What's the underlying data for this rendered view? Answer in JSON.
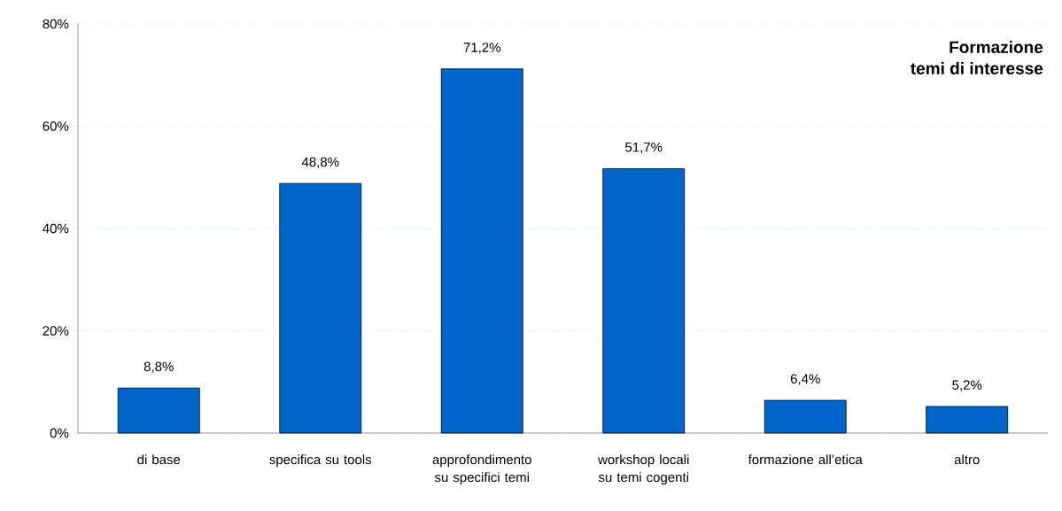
{
  "chart_data": {
    "type": "bar",
    "title": "Formazione",
    "subtitle": "temi di interesse",
    "categories": [
      "di base",
      "specifica su tools",
      "approfondimento su specifici temi",
      "workshop locali su temi cogenti",
      "formazione all’etica",
      "altro"
    ],
    "values": [
      8.8,
      48.8,
      71.2,
      51.7,
      6.4,
      5.2
    ],
    "value_labels": [
      "8,8%",
      "48,8%",
      "71,2%",
      "51,7%",
      "6,4%",
      "5,2%"
    ],
    "color": "#0066cc",
    "ylim": [
      0,
      80
    ],
    "yticks": [
      {
        "value": 0,
        "label": "0%"
      },
      {
        "value": 20,
        "label": "20%"
      },
      {
        "value": 40,
        "label": "40%"
      },
      {
        "value": 60,
        "label": "60%"
      },
      {
        "value": 80,
        "label": "80%"
      }
    ],
    "grid": "y"
  }
}
